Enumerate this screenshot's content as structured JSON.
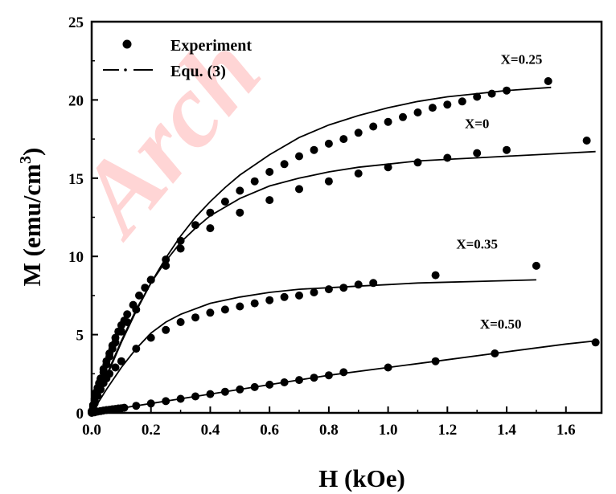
{
  "watermark_text": "Arch",
  "chart_data": {
    "type": "scatter",
    "xlabel": "H (kOe)",
    "ylabel": "M (emu/cm",
    "ylabel_superscript": "3",
    "ylabel_close": ")",
    "xlim": [
      0,
      1.72
    ],
    "ylim": [
      0,
      25
    ],
    "x_ticks": [
      0.0,
      0.2,
      0.4,
      0.6,
      0.8,
      1.0,
      1.2,
      1.4,
      1.6
    ],
    "x_tick_labels": [
      "0.0",
      "0.2",
      "0.4",
      "0.6",
      "0.8",
      "1.0",
      "1.2",
      "1.4",
      "1.6"
    ],
    "y_ticks": [
      0,
      5,
      10,
      15,
      20,
      25
    ],
    "y_tick_labels": [
      "0",
      "5",
      "10",
      "15",
      "20",
      "25"
    ],
    "grid": false,
    "legend": {
      "placement": "top-left",
      "entries": [
        {
          "label": "Experiment",
          "marker": "circle"
        },
        {
          "label": "Equ. (3)",
          "marker": "dash-dot-line"
        }
      ]
    },
    "series": [
      {
        "name": "X=0.25",
        "points_x": [
          0.0,
          0.005,
          0.01,
          0.015,
          0.02,
          0.025,
          0.03,
          0.04,
          0.05,
          0.06,
          0.07,
          0.08,
          0.09,
          0.1,
          0.11,
          0.12,
          0.14,
          0.16,
          0.18,
          0.2,
          0.25,
          0.3,
          0.35,
          0.4,
          0.45,
          0.5,
          0.55,
          0.6,
          0.65,
          0.7,
          0.75,
          0.8,
          0.85,
          0.9,
          0.95,
          1.0,
          1.05,
          1.1,
          1.15,
          1.2,
          1.25,
          1.3,
          1.35,
          1.4,
          1.54
        ],
        "points_y": [
          0.1,
          0.5,
          0.9,
          1.3,
          1.6,
          1.9,
          2.2,
          2.8,
          3.3,
          3.8,
          4.3,
          4.8,
          5.2,
          5.6,
          5.9,
          6.3,
          6.9,
          7.5,
          8.0,
          8.5,
          9.8,
          11.0,
          12.0,
          12.8,
          13.5,
          14.2,
          14.8,
          15.4,
          15.9,
          16.4,
          16.8,
          17.2,
          17.5,
          17.9,
          18.3,
          18.6,
          18.9,
          19.2,
          19.5,
          19.7,
          19.9,
          20.2,
          20.4,
          20.6,
          21.2
        ],
        "fit_x": [
          0,
          0.05,
          0.1,
          0.15,
          0.2,
          0.25,
          0.3,
          0.35,
          0.4,
          0.45,
          0.5,
          0.6,
          0.7,
          0.8,
          0.9,
          1.0,
          1.1,
          1.2,
          1.3,
          1.4,
          1.55
        ],
        "fit_y": [
          0,
          2.3,
          4.5,
          6.5,
          8.3,
          9.9,
          11.3,
          12.5,
          13.5,
          14.4,
          15.2,
          16.5,
          17.6,
          18.4,
          19.0,
          19.5,
          19.9,
          20.2,
          20.4,
          20.6,
          20.8
        ],
        "label_x": 1.45,
        "label_y": 22.3
      },
      {
        "name": "X=0",
        "points_x": [
          0.0,
          0.005,
          0.01,
          0.015,
          0.02,
          0.03,
          0.04,
          0.05,
          0.06,
          0.07,
          0.08,
          0.1,
          0.12,
          0.15,
          0.2,
          0.25,
          0.3,
          0.4,
          0.5,
          0.6,
          0.7,
          0.8,
          0.9,
          1.0,
          1.1,
          1.2,
          1.3,
          1.4,
          1.67
        ],
        "points_y": [
          0.1,
          0.4,
          0.8,
          1.2,
          1.5,
          2.1,
          2.6,
          3.1,
          3.6,
          4.1,
          4.5,
          5.2,
          5.8,
          6.6,
          8.5,
          9.4,
          10.5,
          11.8,
          12.8,
          13.6,
          14.3,
          14.8,
          15.3,
          15.7,
          16.0,
          16.3,
          16.6,
          16.8,
          17.4
        ],
        "fit_x": [
          0,
          0.05,
          0.1,
          0.15,
          0.2,
          0.25,
          0.3,
          0.35,
          0.4,
          0.5,
          0.6,
          0.7,
          0.8,
          0.9,
          1.0,
          1.1,
          1.2,
          1.3,
          1.4,
          1.5,
          1.7
        ],
        "fit_y": [
          0,
          2.4,
          4.6,
          6.6,
          8.3,
          9.7,
          10.9,
          11.8,
          12.6,
          13.7,
          14.5,
          15.0,
          15.4,
          15.7,
          15.9,
          16.1,
          16.2,
          16.3,
          16.4,
          16.5,
          16.7
        ],
        "label_x": 1.3,
        "label_y": 18.2
      },
      {
        "name": "X=0.35",
        "points_x": [
          0.0,
          0.005,
          0.01,
          0.02,
          0.03,
          0.04,
          0.05,
          0.06,
          0.08,
          0.1,
          0.15,
          0.2,
          0.25,
          0.3,
          0.35,
          0.4,
          0.45,
          0.5,
          0.55,
          0.6,
          0.65,
          0.7,
          0.75,
          0.8,
          0.85,
          0.9,
          0.95,
          1.16,
          1.5
        ],
        "points_y": [
          0.1,
          0.3,
          0.6,
          1.1,
          1.5,
          1.9,
          2.2,
          2.5,
          2.9,
          3.3,
          4.1,
          4.8,
          5.3,
          5.8,
          6.1,
          6.4,
          6.6,
          6.8,
          7.0,
          7.2,
          7.4,
          7.5,
          7.7,
          7.9,
          8.0,
          8.2,
          8.3,
          8.8,
          9.4
        ],
        "fit_x": [
          0,
          0.05,
          0.1,
          0.15,
          0.2,
          0.25,
          0.3,
          0.4,
          0.5,
          0.6,
          0.7,
          0.8,
          0.9,
          1.0,
          1.1,
          1.2,
          1.3,
          1.4,
          1.5
        ],
        "fit_y": [
          0,
          1.5,
          2.9,
          4.1,
          5.1,
          5.8,
          6.3,
          7.0,
          7.4,
          7.7,
          7.9,
          8.0,
          8.1,
          8.2,
          8.3,
          8.35,
          8.4,
          8.45,
          8.5
        ],
        "label_x": 1.3,
        "label_y": 10.5
      },
      {
        "name": "X=0.50",
        "points_x": [
          0.0,
          0.01,
          0.02,
          0.03,
          0.04,
          0.05,
          0.06,
          0.07,
          0.08,
          0.09,
          0.1,
          0.11,
          0.15,
          0.2,
          0.25,
          0.3,
          0.35,
          0.4,
          0.45,
          0.5,
          0.55,
          0.6,
          0.65,
          0.7,
          0.75,
          0.8,
          0.85,
          1.0,
          1.16,
          1.36,
          1.7
        ],
        "points_y": [
          0.0,
          0.04,
          0.08,
          0.12,
          0.15,
          0.18,
          0.2,
          0.23,
          0.25,
          0.28,
          0.3,
          0.33,
          0.45,
          0.6,
          0.75,
          0.9,
          1.05,
          1.2,
          1.35,
          1.5,
          1.65,
          1.8,
          1.95,
          2.1,
          2.25,
          2.4,
          2.6,
          2.9,
          3.3,
          3.8,
          4.5
        ],
        "fit_x": [
          0,
          0.2,
          0.4,
          0.6,
          0.8,
          1.0,
          1.2,
          1.4,
          1.6,
          1.7
        ],
        "fit_y": [
          0,
          0.6,
          1.2,
          1.8,
          2.4,
          2.9,
          3.4,
          3.9,
          4.4,
          4.6
        ],
        "label_x": 1.38,
        "label_y": 5.4
      }
    ]
  }
}
